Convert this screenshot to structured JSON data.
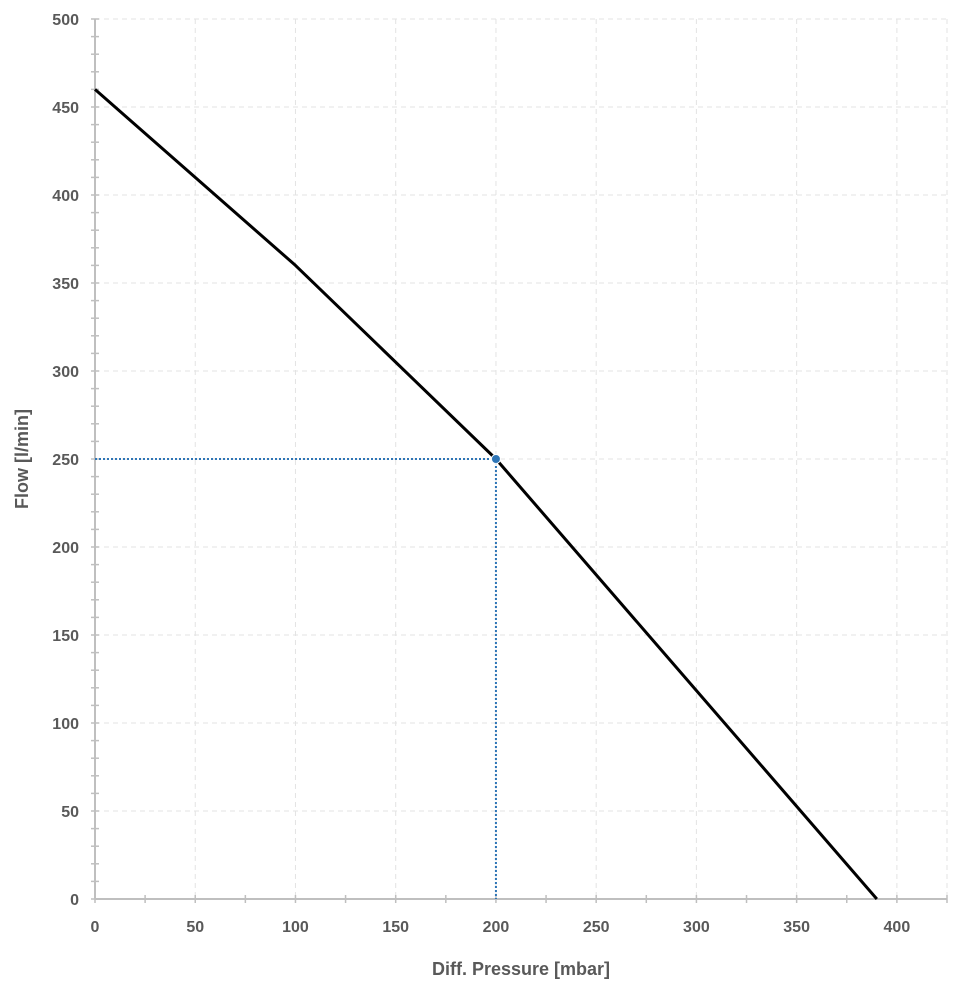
{
  "chart_data": {
    "type": "line",
    "title": "",
    "xlabel": "Diff. Pressure [mbar]",
    "ylabel": "Flow [l/min]",
    "xlim": [
      0,
      425
    ],
    "ylim": [
      0,
      500
    ],
    "x_ticks": [
      0,
      50,
      100,
      150,
      200,
      250,
      300,
      350,
      400
    ],
    "y_ticks": [
      0,
      50,
      100,
      150,
      200,
      250,
      300,
      350,
      400,
      450,
      500
    ],
    "grid": true,
    "legend": "none",
    "series": [
      {
        "color": "#000000",
        "points": [
          [
            0,
            460
          ],
          [
            100,
            360
          ],
          [
            200,
            250
          ],
          [
            390,
            0
          ]
        ]
      }
    ],
    "marker": {
      "x": 200,
      "y": 250,
      "color": "#2e75b6",
      "guides": true
    }
  }
}
